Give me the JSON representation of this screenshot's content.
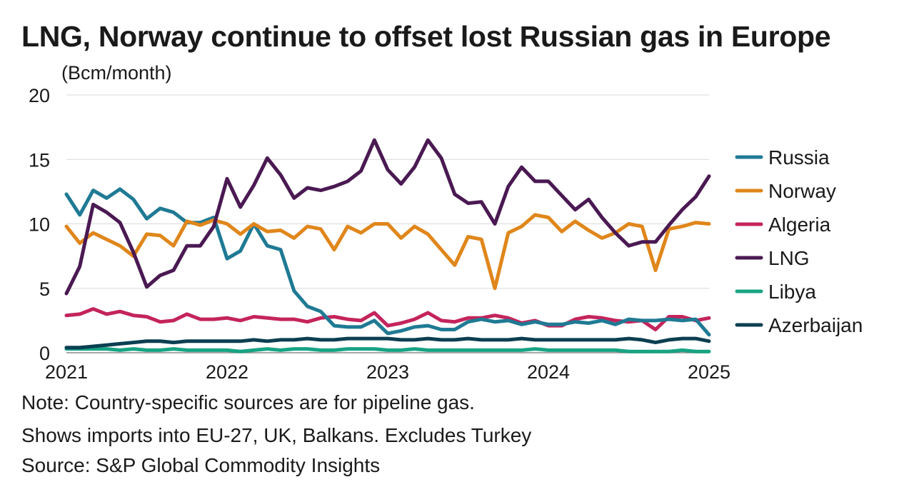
{
  "chart_data": {
    "type": "line",
    "title": "LNG, Norway continue to offset lost Russian gas in Europe",
    "ylabel": "(Bcm/month)",
    "xlabel": "",
    "ylim": [
      0,
      20
    ],
    "yticks": [
      "0",
      "5",
      "10",
      "15",
      "20"
    ],
    "xlim": [
      2021,
      2025
    ],
    "xticks": [
      "2021",
      "2022",
      "2023",
      "2024",
      "2025"
    ],
    "grid": true,
    "legend_position": "right",
    "x_start": "2021-01",
    "x_step": "month",
    "series": [
      {
        "name": "Russia",
        "color": "#1f7a94",
        "values": [
          12.3,
          10.7,
          12.6,
          12.0,
          12.7,
          11.9,
          10.4,
          11.2,
          10.9,
          10.1,
          10.1,
          10.5,
          7.3,
          7.9,
          10.0,
          8.3,
          8.0,
          4.8,
          3.6,
          3.2,
          2.1,
          2.0,
          2.0,
          2.5,
          1.5,
          1.7,
          2.0,
          2.1,
          1.8,
          1.8,
          2.4,
          2.6,
          2.4,
          2.5,
          2.2,
          2.4,
          2.2,
          2.2,
          2.4,
          2.3,
          2.5,
          2.2,
          2.6,
          2.5,
          2.5,
          2.6,
          2.5,
          2.6,
          1.4
        ]
      },
      {
        "name": "Norway",
        "color": "#e0861b",
        "values": [
          9.8,
          8.5,
          9.3,
          8.8,
          8.3,
          7.5,
          9.2,
          9.1,
          8.3,
          10.2,
          9.9,
          10.3,
          10.0,
          9.2,
          10.0,
          9.4,
          9.5,
          8.9,
          9.8,
          9.6,
          8.0,
          9.8,
          9.3,
          10.0,
          10.0,
          8.9,
          9.8,
          9.2,
          8.0,
          6.8,
          9.0,
          8.8,
          5.0,
          9.3,
          9.8,
          10.7,
          10.5,
          9.4,
          10.2,
          9.5,
          8.9,
          9.3,
          10.0,
          9.8,
          6.4,
          9.6,
          9.8,
          10.1,
          10.0
        ]
      },
      {
        "name": "Algeria",
        "color": "#c4245c",
        "values": [
          2.9,
          3.0,
          3.4,
          3.0,
          3.2,
          2.9,
          2.8,
          2.4,
          2.5,
          3.0,
          2.6,
          2.6,
          2.7,
          2.5,
          2.8,
          2.7,
          2.6,
          2.6,
          2.4,
          2.7,
          2.8,
          2.6,
          2.5,
          3.1,
          2.1,
          2.3,
          2.6,
          3.1,
          2.5,
          2.4,
          2.7,
          2.7,
          2.9,
          2.7,
          2.3,
          2.5,
          2.1,
          2.1,
          2.6,
          2.8,
          2.7,
          2.5,
          2.4,
          2.5,
          1.8,
          2.8,
          2.8,
          2.5,
          2.7
        ]
      },
      {
        "name": "LNG",
        "color": "#4a1952",
        "values": [
          4.6,
          6.7,
          11.5,
          10.9,
          10.1,
          7.8,
          5.1,
          6.0,
          6.4,
          8.3,
          8.3,
          9.8,
          13.5,
          11.3,
          13.0,
          15.1,
          13.8,
          12.0,
          12.8,
          12.6,
          12.9,
          13.3,
          14.1,
          16.5,
          14.2,
          13.1,
          14.4,
          16.5,
          15.1,
          12.3,
          11.6,
          11.7,
          10.0,
          12.9,
          14.4,
          13.3,
          13.3,
          12.2,
          11.1,
          11.9,
          10.5,
          9.3,
          8.3,
          8.6,
          8.6,
          9.9,
          11.1,
          12.1,
          13.7
        ]
      },
      {
        "name": "Libya",
        "color": "#18a383",
        "values": [
          0.3,
          0.3,
          0.3,
          0.3,
          0.2,
          0.3,
          0.2,
          0.2,
          0.3,
          0.2,
          0.2,
          0.2,
          0.2,
          0.1,
          0.2,
          0.3,
          0.2,
          0.3,
          0.3,
          0.2,
          0.2,
          0.3,
          0.3,
          0.3,
          0.2,
          0.2,
          0.3,
          0.2,
          0.2,
          0.2,
          0.2,
          0.2,
          0.2,
          0.2,
          0.2,
          0.3,
          0.2,
          0.2,
          0.2,
          0.2,
          0.2,
          0.2,
          0.1,
          0.1,
          0.1,
          0.1,
          0.2,
          0.1,
          0.1
        ]
      },
      {
        "name": "Azerbaijan",
        "color": "#0c3f52",
        "values": [
          0.4,
          0.4,
          0.5,
          0.6,
          0.7,
          0.8,
          0.9,
          0.9,
          0.8,
          0.9,
          0.9,
          0.9,
          0.9,
          0.9,
          1.0,
          0.9,
          1.0,
          1.0,
          1.1,
          1.0,
          1.0,
          1.1,
          1.1,
          1.1,
          1.1,
          1.0,
          1.0,
          1.1,
          1.0,
          1.0,
          1.1,
          1.0,
          1.0,
          1.0,
          1.1,
          1.0,
          1.0,
          1.0,
          1.0,
          1.0,
          1.0,
          1.0,
          1.1,
          1.0,
          0.8,
          1.0,
          1.1,
          1.1,
          0.9
        ]
      }
    ],
    "notes": [
      "Note: Country-specific sources are for pipeline gas.",
      "Shows imports into EU-27, UK, Balkans. Excludes Turkey",
      "Source: S&P Global Commodity Insights"
    ]
  }
}
